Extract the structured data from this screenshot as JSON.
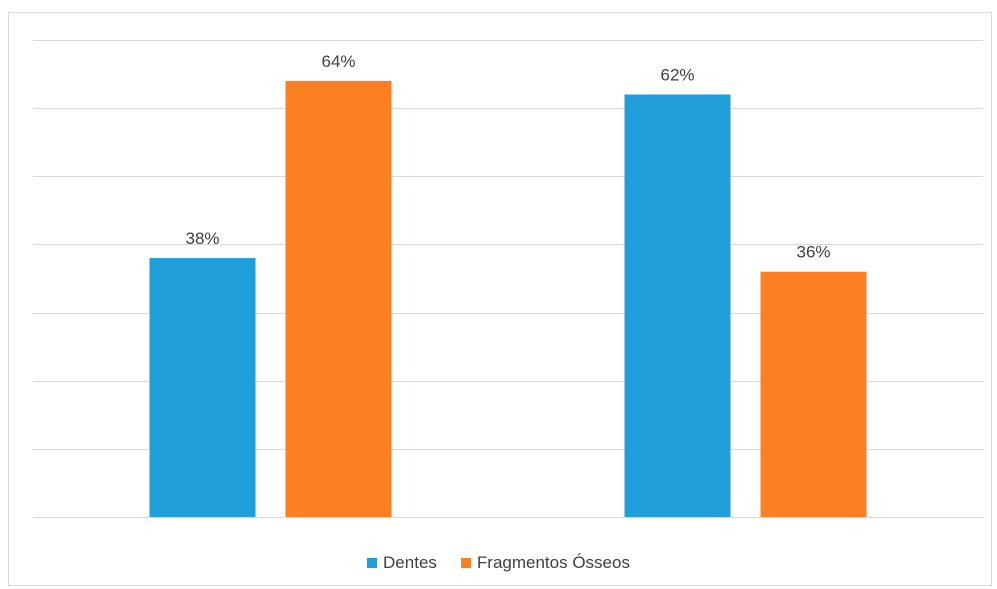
{
  "chart_data": {
    "type": "bar",
    "categories": [
      "",
      ""
    ],
    "series": [
      {
        "name": "Dentes",
        "values": [
          38,
          62
        ],
        "labels": [
          "38%",
          "62%"
        ],
        "color": "#1f9ed9"
      },
      {
        "name": "Fragmentos Ósseos",
        "values": [
          64,
          36
        ],
        "labels": [
          "64%",
          "36%"
        ],
        "color": "#fd7f23"
      }
    ],
    "title": "",
    "xlabel": "",
    "ylabel": "",
    "ylim": [
      0,
      70
    ],
    "grid": true,
    "legend_position": "bottom"
  }
}
